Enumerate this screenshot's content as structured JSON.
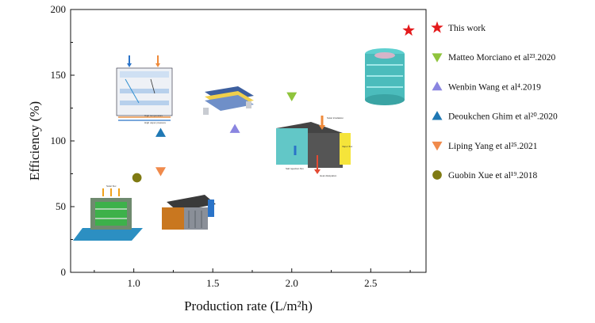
{
  "chart_data": {
    "type": "scatter",
    "xlabel": "Production rate (L/m²h)",
    "ylabel": "Efficiency (%)",
    "xlim": [
      0.6,
      2.85
    ],
    "ylim": [
      0,
      200
    ],
    "xticks": [
      "1.0",
      "1.5",
      "2.0",
      "2.5"
    ],
    "xtick_values": [
      1.0,
      1.5,
      2.0,
      2.5
    ],
    "yticks": [
      "0",
      "50",
      "100",
      "150",
      "200"
    ],
    "ytick_values": [
      0,
      50,
      100,
      150,
      200
    ],
    "grid": false,
    "legend_position": "right",
    "series": [
      {
        "name": "This work",
        "marker": "star",
        "color": "#e41a1c",
        "points": [
          {
            "x": 2.74,
            "y": 184
          }
        ]
      },
      {
        "name": "Matteo Morciano et al²³.2020",
        "marker": "triangle-down",
        "color": "#8fc43c",
        "points": [
          {
            "x": 2.0,
            "y": 134
          }
        ]
      },
      {
        "name": "Wenbin Wang et al⁴.2019",
        "marker": "triangle-up",
        "color": "#8a85e0",
        "points": [
          {
            "x": 1.64,
            "y": 109
          }
        ]
      },
      {
        "name": "Deoukchen Ghim et al²⁰.2020",
        "marker": "triangle-up",
        "color": "#1f78b4",
        "points": [
          {
            "x": 1.17,
            "y": 106
          }
        ]
      },
      {
        "name": "Liping Yang et al²⁵.2021",
        "marker": "triangle-down",
        "color": "#f08a4b",
        "points": [
          {
            "x": 1.17,
            "y": 77
          }
        ]
      },
      {
        "name": "Guobin Xue et al¹⁹.2018",
        "marker": "circle",
        "color": "#7f7a12",
        "points": [
          {
            "x": 1.02,
            "y": 72
          }
        ]
      }
    ]
  },
  "insets": {
    "upper_left": {
      "labels": [
        "High temperature",
        "High vapor pressure"
      ]
    },
    "right_center": {
      "labels": [
        "Solar irradiation",
        "Salt rejection flux",
        "Heat dissipation",
        "Vapor flux"
      ]
    },
    "lower_left": {
      "labels": [
        "Solar flux"
      ]
    }
  }
}
